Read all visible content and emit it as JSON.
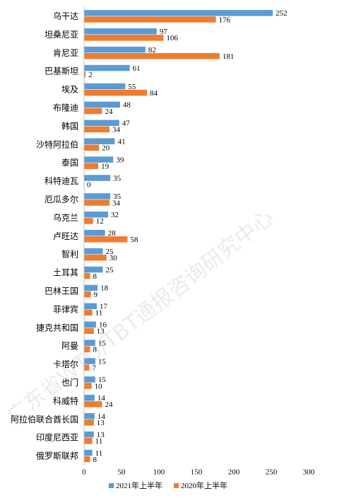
{
  "chart_data": {
    "type": "bar",
    "orientation": "horizontal",
    "categories": [
      "乌干达",
      "坦桑尼亚",
      "肯尼亚",
      "巴基斯坦",
      "埃及",
      "布隆迪",
      "韩国",
      "沙特阿拉伯",
      "泰国",
      "科特迪瓦",
      "厄瓜多尔",
      "乌克兰",
      "卢旺达",
      "智利",
      "土耳其",
      "巴林王国",
      "菲律宾",
      "捷克共和国",
      "阿曼",
      "卡塔尔",
      "也门",
      "科威特",
      "阿拉伯联合酋长国",
      "印度尼西亚",
      "俄罗斯联邦"
    ],
    "series": [
      {
        "name": "2021年上半年",
        "color": "#5B9BD5",
        "values": [
          252,
          97,
          82,
          61,
          55,
          48,
          47,
          41,
          39,
          35,
          35,
          32,
          28,
          25,
          25,
          18,
          17,
          16,
          15,
          15,
          15,
          14,
          14,
          13,
          11
        ]
      },
      {
        "name": "2020年上半年",
        "color": "#ED7D31",
        "values": [
          176,
          106,
          181,
          2,
          84,
          24,
          34,
          20,
          19,
          0,
          34,
          12,
          58,
          30,
          8,
          9,
          11,
          13,
          8,
          7,
          10,
          24,
          13,
          11,
          8
        ]
      }
    ],
    "xlim": [
      0,
      300
    ],
    "xticks": [
      "0",
      "50",
      "100",
      "150",
      "200",
      "250",
      "300"
    ],
    "grid": false,
    "legend_position": "bottom"
  },
  "watermark": "广东省WTO/TBT通报咨询研究中心"
}
